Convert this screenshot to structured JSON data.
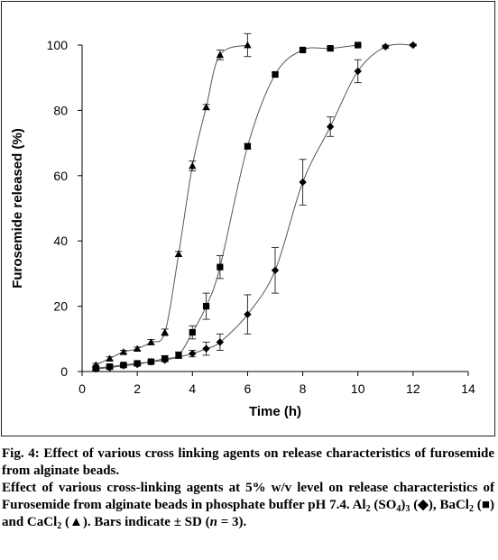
{
  "chart_data": {
    "type": "scatter",
    "xlabel": "Time (h)",
    "ylabel": "Furosemide released (%)",
    "xlim": [
      0,
      14
    ],
    "ylim": [
      0,
      100
    ],
    "xticks": [
      "0",
      "2",
      "4",
      "6",
      "8",
      "10",
      "12",
      "14"
    ],
    "yticks": [
      "0",
      "20",
      "40",
      "60",
      "80",
      "100"
    ],
    "grid": false,
    "legend": "none",
    "series": [
      {
        "marker": "diamond",
        "color": "#000000",
        "x": [
          0.5,
          1,
          1.5,
          2,
          2.5,
          3,
          4,
          4.5,
          5,
          6,
          7,
          8,
          9,
          10,
          11,
          12
        ],
        "y": [
          0.8,
          1.2,
          1.8,
          2.2,
          3,
          3.5,
          5.5,
          7,
          9,
          17.5,
          31,
          58,
          75,
          92,
          99.5,
          100
        ],
        "err": [
          0.5,
          0.5,
          0.5,
          0.5,
          0.5,
          0.5,
          1,
          2,
          2.5,
          6,
          7,
          7,
          3,
          3.5,
          0.5,
          0.3
        ]
      },
      {
        "marker": "square",
        "color": "#000000",
        "x": [
          0.5,
          1,
          1.5,
          2,
          2.5,
          3,
          3.5,
          4,
          4.5,
          5,
          6,
          7,
          8,
          9,
          10
        ],
        "y": [
          1,
          1.5,
          2,
          2.5,
          3,
          4,
          5,
          12,
          20,
          32,
          69,
          91,
          98.5,
          99,
          100
        ],
        "err": [
          0.5,
          0.5,
          0.5,
          0.5,
          0.5,
          0.8,
          1,
          2,
          4,
          3.5,
          0.8,
          0.6,
          0.5,
          0.5,
          0.3
        ]
      },
      {
        "marker": "triangle",
        "color": "#000000",
        "x": [
          0.5,
          1,
          1.5,
          2,
          2.5,
          3,
          3.5,
          4,
          4.5,
          5,
          6
        ],
        "y": [
          2,
          4,
          6,
          7,
          9,
          12,
          36,
          63,
          81,
          97,
          100
        ],
        "err": [
          0.5,
          0.5,
          0.5,
          0.5,
          0.8,
          1,
          0.8,
          1.5,
          0.8,
          1.5,
          3.5
        ]
      }
    ]
  },
  "caption": {
    "fig_label": "Fig. 4:",
    "fig_title": "Effect of various cross linking agents on release characteristics of furosemide from alginate beads.",
    "line1": "Effect of various cross-linking agents at 5% w/v level on release characteristics of Furosemide from alginate beads in phosphate buffer pH 7.4. Al",
    "al_sub1": "2",
    "al_mid": " (SO",
    "al_sub2": "4",
    "al_close": ")",
    "al_sub3": "3",
    "al_sym": " (◆), BaCl",
    "ba_sub": "2",
    "ba_sym": " (■) and CaCl",
    "ca_sub": "2",
    "ca_sym": " (▲). Bars indicate ± SD (",
    "n_var": "n",
    "n_val": " = 3)."
  }
}
